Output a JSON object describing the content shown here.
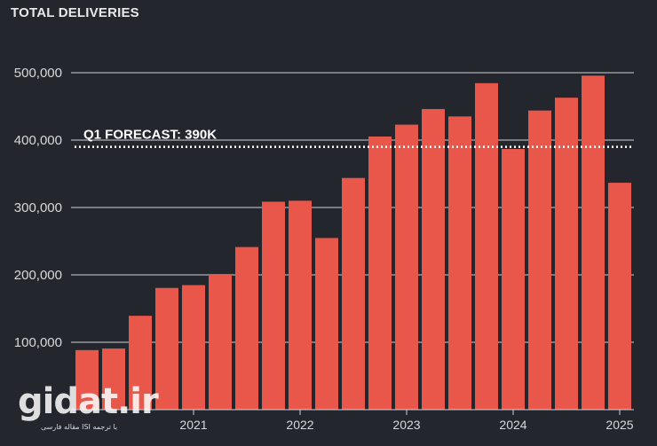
{
  "chart_data": {
    "type": "bar",
    "title": "TOTAL DELIVERIES",
    "xlabel": "",
    "ylabel": "",
    "ylim": [
      0,
      500000
    ],
    "y_ticks": [
      "100,000",
      "200,000",
      "300,000",
      "400,000",
      "500,000"
    ],
    "y_tick_values": [
      100000,
      200000,
      300000,
      400000,
      500000
    ],
    "year_labels": [
      "2021",
      "2022",
      "2023",
      "2024",
      "2025"
    ],
    "year_label_bar_index": [
      4.5,
      8.5,
      12.5,
      16.5,
      20.5
    ],
    "values": [
      88400,
      90700,
      139300,
      180600,
      184800,
      201300,
      241300,
      308600,
      310000,
      254700,
      343800,
      405300,
      422900,
      446100,
      435100,
      484500,
      386800,
      443900,
      462900,
      495600,
      336700
    ],
    "bar_color": "#e8574a",
    "forecast": {
      "label": "Q1 FORECAST: 390K",
      "value": 390000,
      "color": "#ffffff"
    },
    "grid": true,
    "legend": "none"
  },
  "watermark": {
    "text": "gidat.ir",
    "subtext": "مقاله فارسی ISI با ترجمه"
  }
}
